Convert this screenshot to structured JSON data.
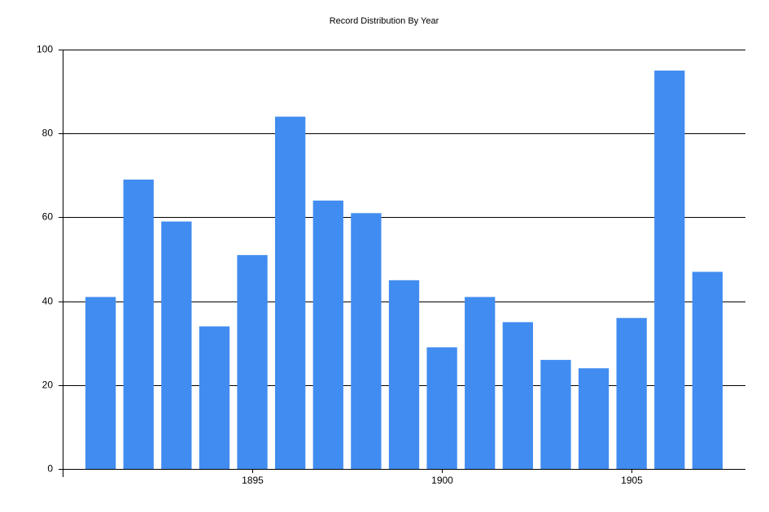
{
  "chart_data": {
    "type": "bar",
    "title": "Record Distribution By Year",
    "x": [
      1891,
      1892,
      1893,
      1894,
      1895,
      1896,
      1897,
      1898,
      1899,
      1900,
      1901,
      1902,
      1903,
      1904,
      1905,
      1906,
      1907
    ],
    "values": [
      41,
      69,
      59,
      34,
      51,
      84,
      64,
      61,
      45,
      29,
      41,
      35,
      26,
      24,
      36,
      95,
      47
    ],
    "color": "#418cf0",
    "xlim": [
      1890,
      1908
    ],
    "xticks": [
      1895,
      1900,
      1905
    ],
    "ylim": [
      0,
      100
    ],
    "yticks": [
      0,
      20,
      40,
      60,
      80,
      100
    ],
    "grid": true
  }
}
